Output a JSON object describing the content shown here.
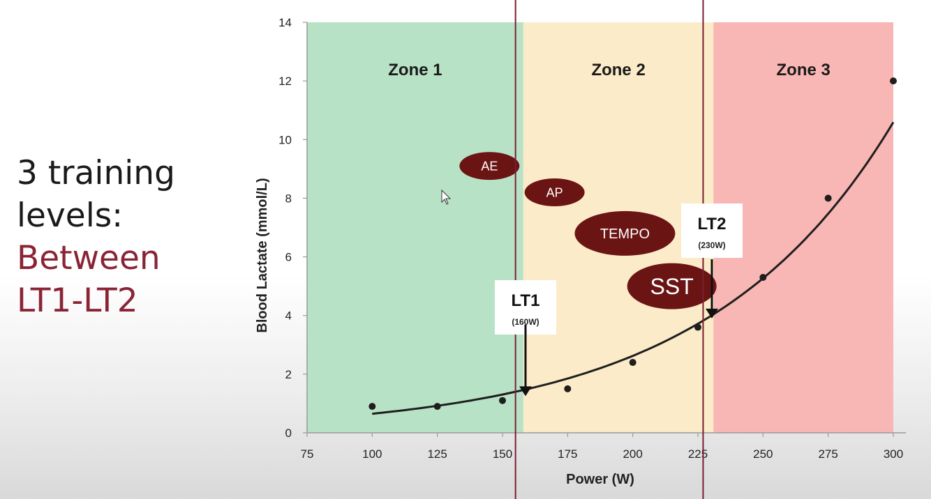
{
  "slide": {
    "line1": "3 training",
    "line2": "levels:",
    "line3": "Between",
    "line4": "LT1-LT2"
  },
  "chart_data": {
    "type": "scatter",
    "xlabel": "Power (W)",
    "ylabel": "Blood Lactate (mmol/L)",
    "xlim": [
      75,
      300
    ],
    "ylim": [
      0,
      14
    ],
    "x_ticks": [
      75,
      100,
      125,
      150,
      175,
      200,
      225,
      250,
      275,
      300
    ],
    "y_ticks": [
      0,
      2,
      4,
      6,
      8,
      10,
      12,
      14
    ],
    "series": [
      {
        "x": [
          100,
          125,
          150,
          175,
          200,
          225,
          250,
          275,
          300
        ],
        "y": [
          0.9,
          0.9,
          1.1,
          1.5,
          2.4,
          3.6,
          5.3,
          8.0,
          12.0
        ],
        "trendline": "exponential",
        "color": "#1e1e1e"
      }
    ],
    "zones": [
      {
        "label": "Zone 1",
        "from": 75,
        "to": 158,
        "color": "#b8e2c6"
      },
      {
        "label": "Zone 2",
        "from": 158,
        "to": 231,
        "color": "#fbebc8"
      },
      {
        "label": "Zone 3",
        "from": 231,
        "to": 300,
        "color": "#f8b6b4"
      }
    ],
    "vertical_lines": [
      {
        "x": 155,
        "color": "#7a1f33"
      },
      {
        "x": 227,
        "color": "#7a1f33"
      }
    ],
    "thresholds": [
      {
        "title": "LT1",
        "subtitle": "(160W)",
        "x": 160,
        "y": 1.25
      },
      {
        "title": "LT2",
        "subtitle": "(230W)",
        "x": 230,
        "y": 3.9
      }
    ],
    "intensity_labels": [
      {
        "text": "AE",
        "x": 145,
        "y": 9.1,
        "size": "small"
      },
      {
        "text": "AP",
        "x": 170,
        "y": 8.2,
        "size": "small"
      },
      {
        "text": "TEMPO",
        "x": 197,
        "y": 6.8,
        "size": "medium"
      },
      {
        "text": "SST",
        "x": 215,
        "y": 5.0,
        "size": "large"
      }
    ],
    "colors": {
      "oval": "#6b1414",
      "curve": "#1e1e1e"
    }
  }
}
